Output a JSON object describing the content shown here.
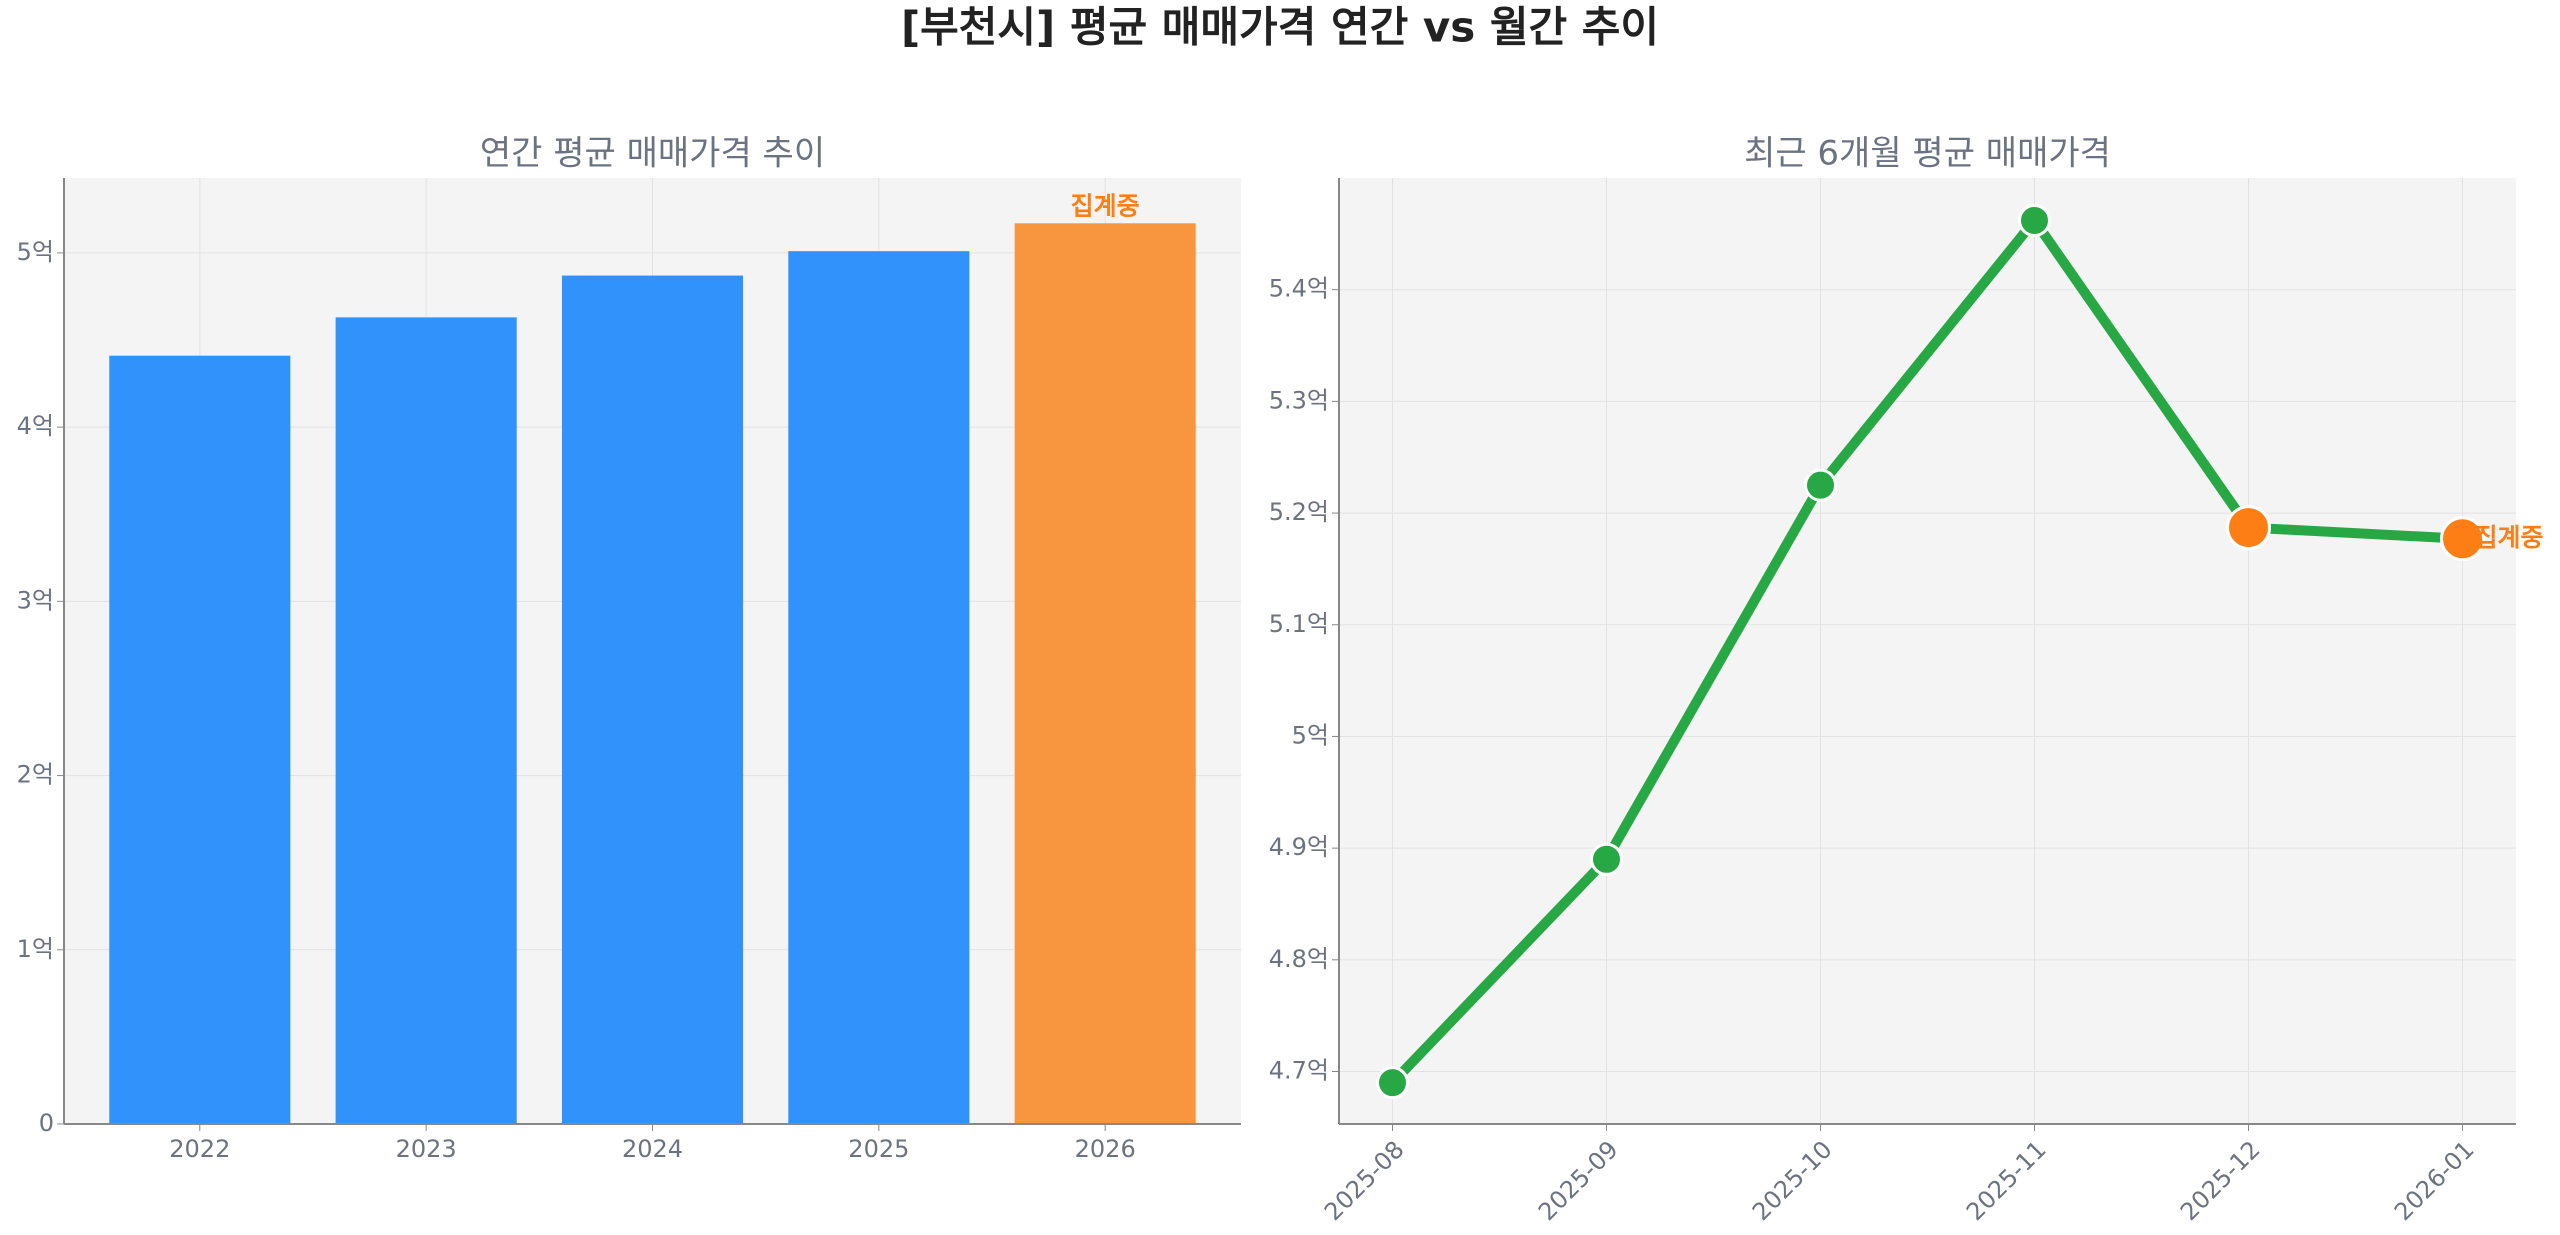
{
  "title": "[부천시] 평균 매매가격 연간 vs 월간 추이",
  "chart_data": [
    {
      "type": "bar",
      "title": "연간 평균 매매가격 추이",
      "categories": [
        "2022",
        "2023",
        "2024",
        "2025",
        "2026"
      ],
      "values": [
        4.41,
        4.63,
        4.87,
        5.01,
        5.17
      ],
      "colors": [
        "#3192fb",
        "#3192fb",
        "#3192fb",
        "#3192fb",
        "#f89640"
      ],
      "ylim": [
        0,
        5.43
      ],
      "yticks": [
        0,
        {
          "value": 1,
          "label": "1억"
        },
        {
          "value": 2,
          "label": "2억"
        },
        {
          "value": 3,
          "label": "3억"
        },
        {
          "value": 4,
          "label": "4억"
        },
        {
          "value": 5,
          "label": "5억"
        }
      ],
      "grid": true,
      "annotation": "집계중",
      "annotation_color": "#fd7e14"
    },
    {
      "type": "line",
      "title": "최근 6개월 평균 매매가격",
      "x": [
        "2025-08",
        "2025-09",
        "2025-10",
        "2025-11",
        "2025-12",
        "2026-01"
      ],
      "values": [
        4.69,
        4.89,
        5.225,
        5.462,
        5.187,
        5.177
      ],
      "color": "#28a745",
      "point_colors": [
        "#28a745",
        "#28a745",
        "#28a745",
        "#28a745",
        "#fd7e14",
        "#fd7e14"
      ],
      "ylim": [
        4.653,
        5.5
      ],
      "yticks": [
        {
          "value": 4.7,
          "label": "4.7억"
        },
        {
          "value": 4.8,
          "label": "4.8억"
        },
        {
          "value": 4.9,
          "label": "4.9억"
        },
        {
          "value": 5,
          "label": "5억"
        },
        {
          "value": 5.1,
          "label": "5.1억"
        },
        {
          "value": 5.2,
          "label": "5.2억"
        },
        {
          "value": 5.3,
          "label": "5.3억"
        },
        {
          "value": 5.4,
          "label": "5.4억"
        }
      ],
      "grid": true,
      "annotation": "집계중",
      "annotation_color": "#fd7e14"
    }
  ]
}
